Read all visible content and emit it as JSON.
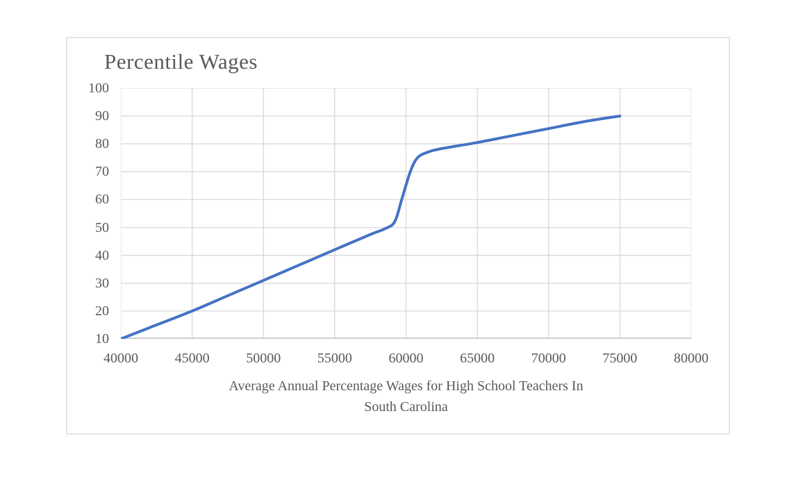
{
  "chart": {
    "title": "Percentile Wages",
    "xlabel_lines": [
      "Average Annual Percentage Wages for High School Teachers In",
      "South Carolina"
    ],
    "colors": {
      "line": "#4472C4",
      "gridline": "#D9D9D9",
      "axis_line": "#BFBFBF",
      "text": "#595959",
      "frame_border": "#E5E5E5",
      "background": "#FFFFFF"
    }
  },
  "chart_data": {
    "type": "line",
    "title": "Percentile Wages",
    "xlabel": "Average Annual Percentage Wages for High School Teachers In South Carolina",
    "ylabel": "",
    "xlim": [
      40000,
      80000
    ],
    "ylim": [
      10,
      100
    ],
    "x_ticks": [
      40000,
      45000,
      50000,
      55000,
      60000,
      65000,
      70000,
      75000,
      80000
    ],
    "y_ticks": [
      10,
      20,
      30,
      40,
      50,
      60,
      70,
      80,
      90,
      100
    ],
    "grid": true,
    "legend": false,
    "smooth_line": true,
    "series": [
      {
        "name": "Percentile Wages",
        "x_is": "average annual wage ($)",
        "y_is": "percentile",
        "points": [
          [
            40000,
            10
          ],
          [
            42500,
            15
          ],
          [
            45000,
            20
          ],
          [
            47500,
            25.5
          ],
          [
            50000,
            31
          ],
          [
            52500,
            36.5
          ],
          [
            55000,
            42
          ],
          [
            57500,
            47.5
          ],
          [
            58500,
            49.5
          ],
          [
            59200,
            52
          ],
          [
            59700,
            60
          ],
          [
            60300,
            70
          ],
          [
            60800,
            75
          ],
          [
            61500,
            77
          ],
          [
            62500,
            78.3
          ],
          [
            65000,
            80.5
          ],
          [
            67500,
            83
          ],
          [
            70000,
            85.5
          ],
          [
            72500,
            88
          ],
          [
            75000,
            90
          ]
        ],
        "percentile_readings": {
          "p10": 40000,
          "p25": 47000,
          "p50": 59000,
          "p75": 60800,
          "p90": 75000
        }
      }
    ]
  }
}
